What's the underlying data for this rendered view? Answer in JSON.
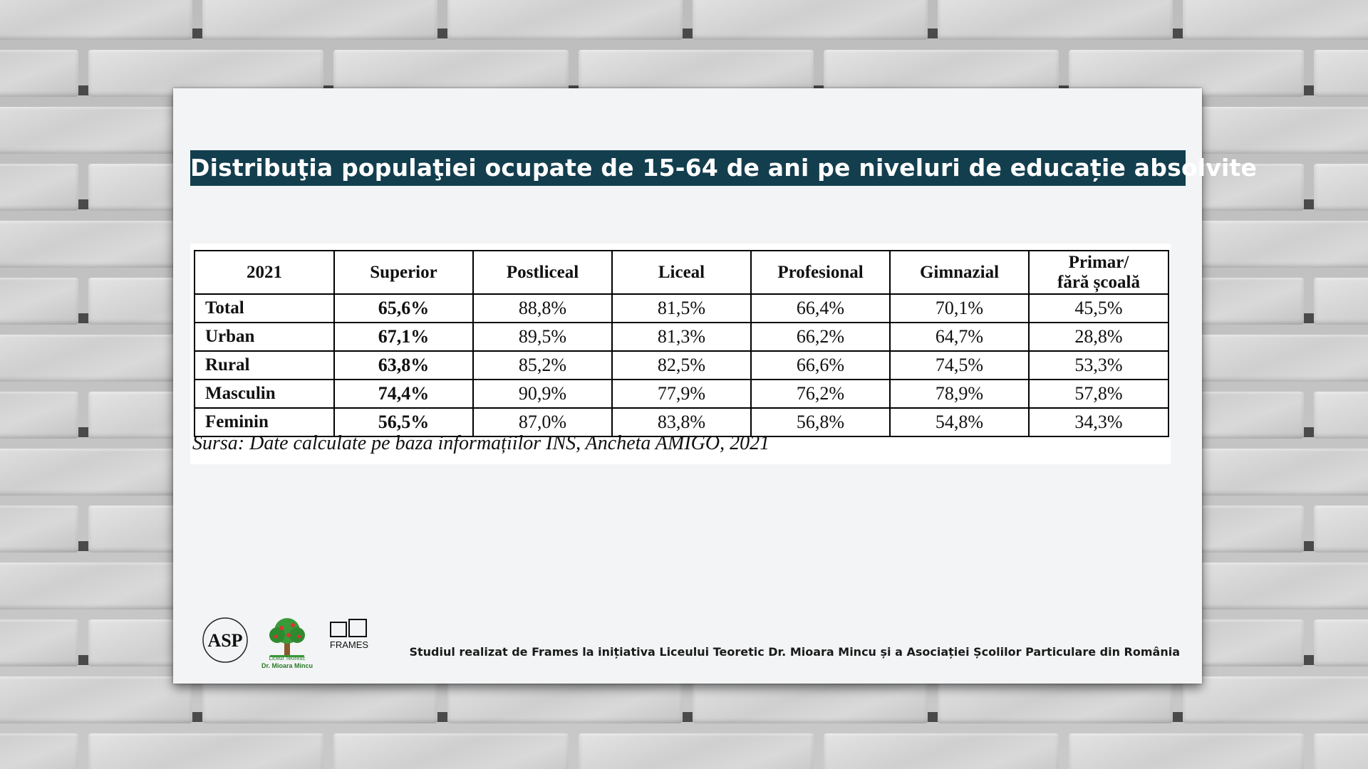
{
  "title": "Distribuţia populaţiei ocupate de 15-64 de ani pe niveluri de educație absolvite",
  "table": {
    "headers": [
      "2021",
      "Superior",
      "Postliceal",
      "Liceal",
      "Profesional",
      "Gimnazial",
      "Primar/",
      "fără școală"
    ],
    "rows": [
      {
        "label": "Total",
        "values": [
          "65,6%",
          "88,8%",
          "81,5%",
          "66,4%",
          "70,1%",
          "45,5%"
        ]
      },
      {
        "label": "Urban",
        "values": [
          "67,1%",
          "89,5%",
          "81,3%",
          "66,2%",
          "64,7%",
          "28,8%"
        ]
      },
      {
        "label": "Rural",
        "values": [
          "63,8%",
          "85,2%",
          "82,5%",
          "66,6%",
          "74,5%",
          "53,3%"
        ]
      },
      {
        "label": "Masculin",
        "values": [
          "74,4%",
          "90,9%",
          "77,9%",
          "76,2%",
          "78,9%",
          "57,8%"
        ]
      },
      {
        "label": "Feminin",
        "values": [
          "56,5%",
          "87,0%",
          "83,8%",
          "56,8%",
          "54,8%",
          "34,3%"
        ]
      }
    ]
  },
  "source": "Sursa: Date calculate pe baza informațiilor INS, Ancheta AMIGO, 2021",
  "footer": "Studiul realizat de  Frames la inițiativa Liceului Teoretic Dr. Mioara Mincu și a Asociației Școlilor Particulare din România",
  "logos": {
    "asp": "ASP",
    "tree_line1": "Liceul Teoretic",
    "tree_line2": "Dr. Mioara Mincu",
    "frames": "FRAMES"
  },
  "colors": {
    "title_bg": "#133e4e",
    "title_text": "#ffffff"
  }
}
